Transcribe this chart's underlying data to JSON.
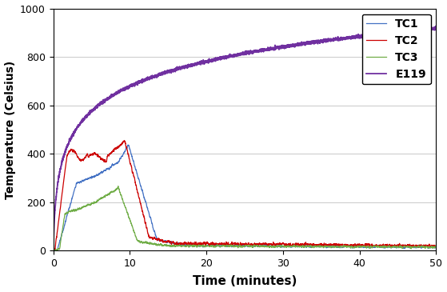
{
  "xlabel": "Time (minutes)",
  "ylabel": "Temperature (Celsius)",
  "xlim": [
    0,
    50
  ],
  "ylim": [
    0,
    1000
  ],
  "xticks": [
    0,
    10,
    20,
    30,
    40,
    50
  ],
  "yticks": [
    0,
    200,
    400,
    600,
    800,
    1000
  ],
  "legend": [
    "TC1",
    "TC2",
    "TC3",
    "E119"
  ],
  "colors": {
    "TC1": "#4472C4",
    "TC2": "#CC0000",
    "TC3": "#70AD47",
    "E119": "#7030A0"
  },
  "background_color": "#FFFFFF",
  "grid_color": "#C0C0C0",
  "figsize": [
    5.59,
    3.65
  ],
  "dpi": 100
}
